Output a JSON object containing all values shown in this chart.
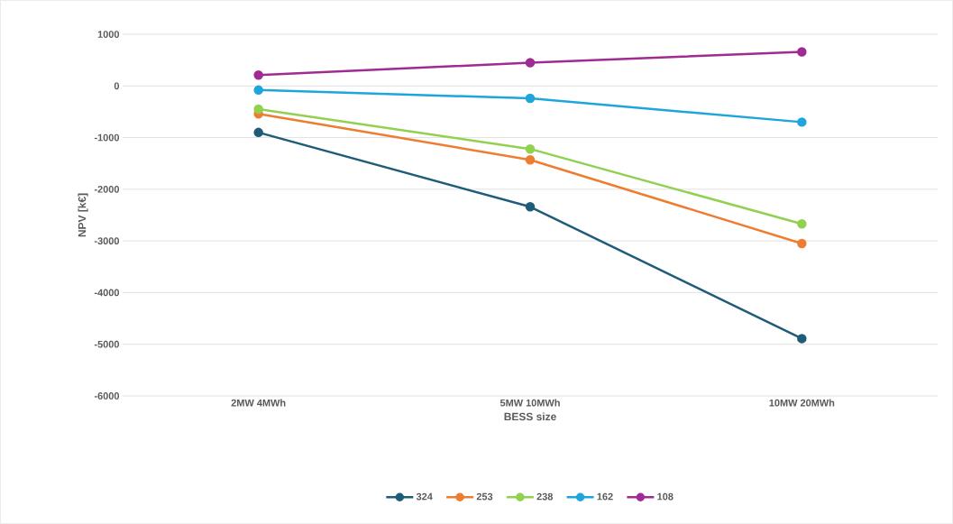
{
  "chart_data": {
    "type": "line",
    "xlabel": "BESS size",
    "ylabel": "NPV [k€]",
    "categories": [
      "2MW 4MWh",
      "5MW 10MWh",
      "10MW 20MWh"
    ],
    "series": [
      {
        "name": "324",
        "color": "#1f5c7a",
        "values": [
          -900,
          -2340,
          -4890
        ]
      },
      {
        "name": "253",
        "color": "#ed7d31",
        "values": [
          -540,
          -1430,
          -3050
        ]
      },
      {
        "name": "238",
        "color": "#92d050",
        "values": [
          -450,
          -1220,
          -2670
        ]
      },
      {
        "name": "162",
        "color": "#1ea6dc",
        "values": [
          -80,
          -240,
          -700
        ]
      },
      {
        "name": "108",
        "color": "#a02b93",
        "values": [
          210,
          450,
          660
        ]
      }
    ],
    "ylim": [
      -6000,
      1000
    ],
    "yticks": [
      -6000,
      -5000,
      -4000,
      -3000,
      -2000,
      -1000,
      0,
      1000
    ],
    "grid": "y",
    "legend": "bottom",
    "marker": "circle",
    "line_style": "solid"
  }
}
